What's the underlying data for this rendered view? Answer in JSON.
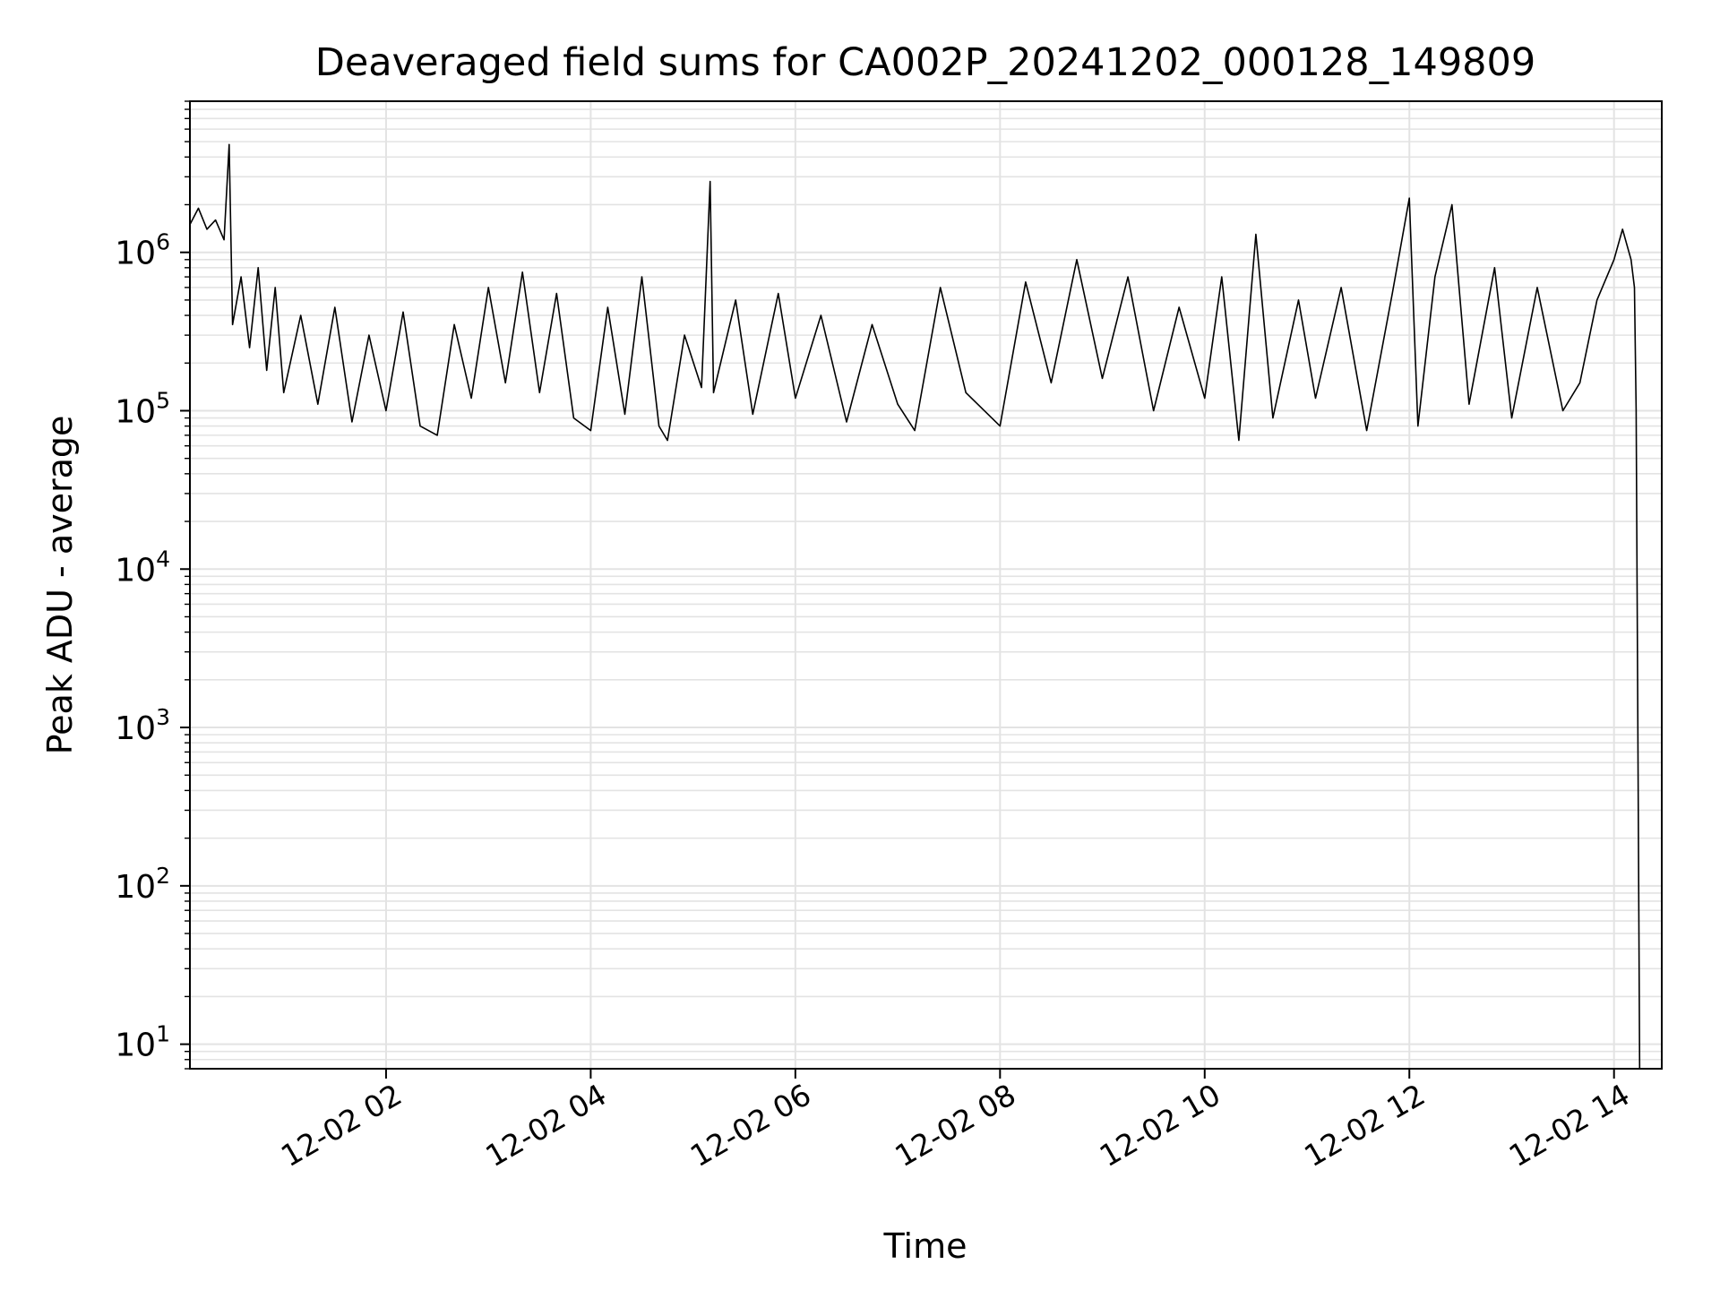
{
  "chart_data": {
    "type": "line",
    "title": "Deaveraged field sums for CA002P_20241202_000128_149809",
    "xlabel": "Time",
    "ylabel": "Peak ADU - average",
    "yscale": "log",
    "xlim": [
      "2024-12-02 00:05",
      "2024-12-02 14:28"
    ],
    "ylim": [
      7,
      9000000
    ],
    "grid": true,
    "line_color": "#000000",
    "grid_color": "#e3e3e3",
    "x_ticks": [
      {
        "x": "2024-12-02 02:00",
        "label": "12-02 02"
      },
      {
        "x": "2024-12-02 04:00",
        "label": "12-02 04"
      },
      {
        "x": "2024-12-02 06:00",
        "label": "12-02 06"
      },
      {
        "x": "2024-12-02 08:00",
        "label": "12-02 08"
      },
      {
        "x": "2024-12-02 10:00",
        "label": "12-02 10"
      },
      {
        "x": "2024-12-02 12:00",
        "label": "12-02 12"
      },
      {
        "x": "2024-12-02 14:00",
        "label": "12-02 14"
      }
    ],
    "y_ticks": [
      {
        "y": 10,
        "base": "10",
        "exp": "1"
      },
      {
        "y": 100,
        "base": "10",
        "exp": "2"
      },
      {
        "y": 1000,
        "base": "10",
        "exp": "3"
      },
      {
        "y": 10000,
        "base": "10",
        "exp": "4"
      },
      {
        "y": 100000,
        "base": "10",
        "exp": "5"
      },
      {
        "y": 1000000,
        "base": "10",
        "exp": "6"
      }
    ],
    "series": [
      {
        "points": [
          [
            "2024-12-02 00:05",
            1500000
          ],
          [
            "2024-12-02 00:10",
            1900000
          ],
          [
            "2024-12-02 00:15",
            1400000
          ],
          [
            "2024-12-02 00:20",
            1600000
          ],
          [
            "2024-12-02 00:25",
            1200000
          ],
          [
            "2024-12-02 00:28",
            4800000
          ],
          [
            "2024-12-02 00:30",
            350000
          ],
          [
            "2024-12-02 00:35",
            700000
          ],
          [
            "2024-12-02 00:40",
            250000
          ],
          [
            "2024-12-02 00:45",
            800000
          ],
          [
            "2024-12-02 00:50",
            180000
          ],
          [
            "2024-12-02 00:55",
            600000
          ],
          [
            "2024-12-02 01:00",
            130000
          ],
          [
            "2024-12-02 01:10",
            400000
          ],
          [
            "2024-12-02 01:20",
            110000
          ],
          [
            "2024-12-02 01:30",
            450000
          ],
          [
            "2024-12-02 01:40",
            85000
          ],
          [
            "2024-12-02 01:50",
            300000
          ],
          [
            "2024-12-02 02:00",
            100000
          ],
          [
            "2024-12-02 02:10",
            420000
          ],
          [
            "2024-12-02 02:20",
            80000
          ],
          [
            "2024-12-02 02:30",
            70000
          ],
          [
            "2024-12-02 02:40",
            350000
          ],
          [
            "2024-12-02 02:50",
            120000
          ],
          [
            "2024-12-02 03:00",
            600000
          ],
          [
            "2024-12-02 03:10",
            150000
          ],
          [
            "2024-12-02 03:20",
            750000
          ],
          [
            "2024-12-02 03:30",
            130000
          ],
          [
            "2024-12-02 03:40",
            550000
          ],
          [
            "2024-12-02 03:50",
            90000
          ],
          [
            "2024-12-02 04:00",
            75000
          ],
          [
            "2024-12-02 04:10",
            450000
          ],
          [
            "2024-12-02 04:20",
            95000
          ],
          [
            "2024-12-02 04:30",
            700000
          ],
          [
            "2024-12-02 04:40",
            80000
          ],
          [
            "2024-12-02 04:45",
            65000
          ],
          [
            "2024-12-02 04:55",
            300000
          ],
          [
            "2024-12-02 05:05",
            140000
          ],
          [
            "2024-12-02 05:10",
            2800000
          ],
          [
            "2024-12-02 05:12",
            130000
          ],
          [
            "2024-12-02 05:25",
            500000
          ],
          [
            "2024-12-02 05:35",
            95000
          ],
          [
            "2024-12-02 05:50",
            550000
          ],
          [
            "2024-12-02 06:00",
            120000
          ],
          [
            "2024-12-02 06:15",
            400000
          ],
          [
            "2024-12-02 06:30",
            85000
          ],
          [
            "2024-12-02 06:45",
            350000
          ],
          [
            "2024-12-02 07:00",
            110000
          ],
          [
            "2024-12-02 07:10",
            75000
          ],
          [
            "2024-12-02 07:25",
            600000
          ],
          [
            "2024-12-02 07:40",
            130000
          ],
          [
            "2024-12-02 08:00",
            80000
          ],
          [
            "2024-12-02 08:15",
            650000
          ],
          [
            "2024-12-02 08:30",
            150000
          ],
          [
            "2024-12-02 08:45",
            900000
          ],
          [
            "2024-12-02 09:00",
            160000
          ],
          [
            "2024-12-02 09:15",
            700000
          ],
          [
            "2024-12-02 09:30",
            100000
          ],
          [
            "2024-12-02 09:45",
            450000
          ],
          [
            "2024-12-02 10:00",
            120000
          ],
          [
            "2024-12-02 10:10",
            700000
          ],
          [
            "2024-12-02 10:20",
            65000
          ],
          [
            "2024-12-02 10:30",
            1300000
          ],
          [
            "2024-12-02 10:40",
            90000
          ],
          [
            "2024-12-02 10:55",
            500000
          ],
          [
            "2024-12-02 11:05",
            120000
          ],
          [
            "2024-12-02 11:20",
            600000
          ],
          [
            "2024-12-02 11:35",
            75000
          ],
          [
            "2024-12-02 11:50",
            550000
          ],
          [
            "2024-12-02 12:00",
            2200000
          ],
          [
            "2024-12-02 12:05",
            80000
          ],
          [
            "2024-12-02 12:15",
            700000
          ],
          [
            "2024-12-02 12:25",
            2000000
          ],
          [
            "2024-12-02 12:35",
            110000
          ],
          [
            "2024-12-02 12:50",
            800000
          ],
          [
            "2024-12-02 13:00",
            90000
          ],
          [
            "2024-12-02 13:15",
            600000
          ],
          [
            "2024-12-02 13:30",
            100000
          ],
          [
            "2024-12-02 13:40",
            150000
          ],
          [
            "2024-12-02 13:50",
            500000
          ],
          [
            "2024-12-02 14:00",
            900000
          ],
          [
            "2024-12-02 14:05",
            1400000
          ],
          [
            "2024-12-02 14:10",
            900000
          ],
          [
            "2024-12-02 14:12",
            600000
          ],
          [
            "2024-12-02 14:13",
            100000
          ],
          [
            "2024-12-02 14:14",
            1000
          ],
          [
            "2024-12-02 14:15",
            7
          ]
        ]
      }
    ]
  }
}
